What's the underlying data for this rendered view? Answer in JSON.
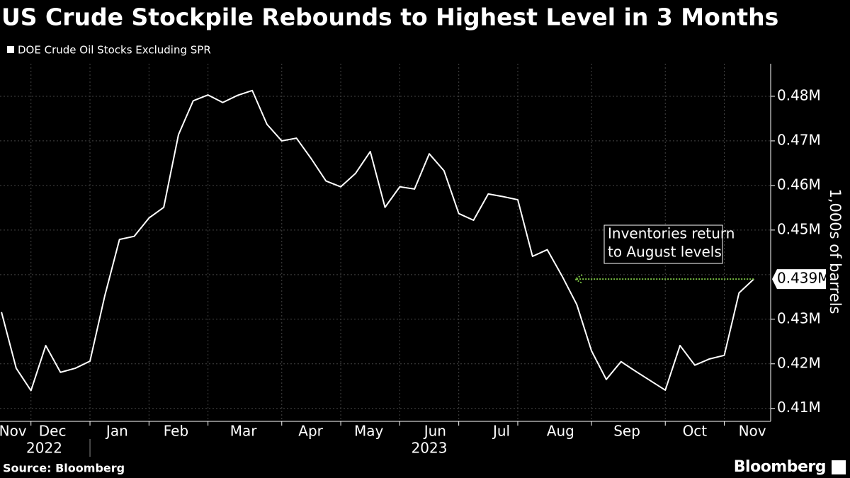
{
  "chart_data": {
    "type": "line",
    "title": "US Crude Stockpile Rebounds to Highest Level in 3 Months",
    "y_axis_label": "1,000s of barrels",
    "source": "Source: Bloomberg",
    "brand": "Bloomberg",
    "annotation": [
      "Inventories return",
      "to August levels"
    ],
    "annotation_color": "#7ac143",
    "background": "#000000",
    "grid": true,
    "xlim": [
      -0.1,
      52
    ],
    "xticks": [
      {
        "value": 0.77,
        "label": "Nov"
      },
      {
        "value": 3.46,
        "label": "Dec"
      },
      {
        "value": 7.84,
        "label": "Jan"
      },
      {
        "value": 11.83,
        "label": "Feb"
      },
      {
        "value": 16.4,
        "label": "Mar"
      },
      {
        "value": 20.96,
        "label": "Apr"
      },
      {
        "value": 24.9,
        "label": "May"
      },
      {
        "value": 29.4,
        "label": "Jun"
      },
      {
        "value": 33.9,
        "label": "Jul"
      },
      {
        "value": 37.9,
        "label": "Aug"
      },
      {
        "value": 42.4,
        "label": "Sep"
      },
      {
        "value": 47,
        "label": "Oct"
      },
      {
        "value": 50.9,
        "label": "Nov"
      }
    ],
    "xgrid": [
      2,
      6,
      10,
      14,
      19,
      23,
      27,
      31,
      35,
      40,
      45,
      49
    ],
    "year_ticks": [
      {
        "value": 2.9,
        "label": "2022"
      },
      {
        "value": 29,
        "label": "2023"
      }
    ],
    "year_divider": 6,
    "ylim": [
      0.4071,
      0.4873
    ],
    "yticks": [
      {
        "value": 0.41,
        "label": "0.41M"
      },
      {
        "value": 0.42,
        "label": "0.42M"
      },
      {
        "value": 0.43,
        "label": "0.43M"
      },
      {
        "value": 0.45,
        "label": "0.45M"
      },
      {
        "value": 0.46,
        "label": "0.46M"
      },
      {
        "value": 0.47,
        "label": "0.47M"
      },
      {
        "value": 0.48,
        "label": "0.48M"
      }
    ],
    "ygrid": [
      0.41,
      0.42,
      0.43,
      0.44,
      0.45,
      0.46,
      0.47,
      0.48
    ],
    "series": [
      {
        "name": "DOE Crude Oil Stocks Excluding SPR",
        "color": "#ffffff",
        "values": [
          0.4316,
          0.419,
          0.414,
          0.4241,
          0.4181,
          0.419,
          0.4206,
          0.4352,
          0.4479,
          0.4486,
          0.4527,
          0.4551,
          0.4714,
          0.479,
          0.4803,
          0.4786,
          0.4802,
          0.4813,
          0.4737,
          0.47,
          0.4706,
          0.466,
          0.461,
          0.4597,
          0.4627,
          0.4676,
          0.4551,
          0.4597,
          0.4592,
          0.4671,
          0.4633,
          0.4537,
          0.4522,
          0.4581,
          0.4575,
          0.4568,
          0.4441,
          0.4456,
          0.4397,
          0.4333,
          0.4229,
          0.4165,
          0.4205,
          0.4183,
          0.4162,
          0.4141,
          0.4241,
          0.4197,
          0.4211,
          0.4219,
          0.4359,
          0.439
        ],
        "value_labels": [
          null,
          null,
          null,
          null,
          null,
          null,
          null,
          null,
          null,
          null,
          null,
          null,
          null,
          null,
          null,
          null,
          null,
          null,
          null,
          null,
          null,
          null,
          null,
          null,
          null,
          null,
          null,
          null,
          null,
          null,
          null,
          null,
          null,
          null,
          null,
          null,
          null,
          null,
          null,
          null,
          null,
          null,
          null,
          null,
          null,
          null,
          null,
          null,
          null,
          null,
          null,
          "0.439M"
        ]
      }
    ]
  }
}
